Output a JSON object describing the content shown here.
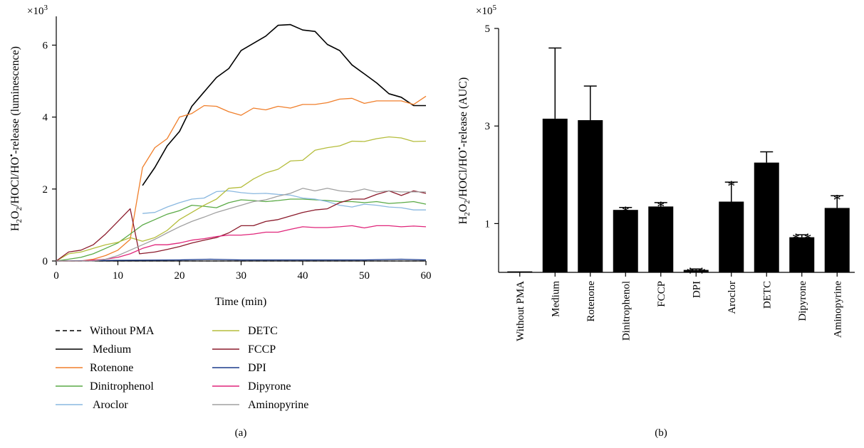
{
  "figure": {
    "panel_a_label": "(a)",
    "panel_b_label": "(b)"
  },
  "chart_data": [
    {
      "type": "line",
      "panel": "(a)",
      "xlabel": "Time (min)",
      "ylabel": "H2O2/HOCl/HO•-release (luminescence)",
      "ylabel_parts": {
        "a": "H",
        "b": "2",
        "c": "O",
        "d": "2",
        "e": "/HOCl/HO",
        "f": "•",
        "g": "-release (luminescence)"
      },
      "yscale_multiplier": {
        "base": "×10",
        "exp": "3"
      },
      "xlim": [
        0,
        60
      ],
      "ylim": [
        0,
        6.8
      ],
      "xticks": [
        0,
        10,
        20,
        30,
        40,
        50,
        60
      ],
      "yticks": [
        0,
        2,
        4,
        6
      ],
      "grid": false,
      "legend_position": "bottom",
      "series": [
        {
          "name": "Without PMA",
          "color": "#000000",
          "dash": "dashed",
          "points": [
            [
              0,
              0
            ],
            [
              10,
              0
            ],
            [
              20,
              0
            ],
            [
              30,
              0
            ],
            [
              40,
              0
            ],
            [
              50,
              0
            ],
            [
              60,
              0
            ]
          ]
        },
        {
          "name": "Medium",
          "color": "#000000",
          "dash": "solid",
          "points": [
            [
              14,
              2.1
            ],
            [
              16,
              2.6
            ],
            [
              18,
              3.2
            ],
            [
              20,
              3.6
            ],
            [
              22,
              4.3
            ],
            [
              24,
              4.7
            ],
            [
              26,
              5.1
            ],
            [
              28,
              5.35
            ],
            [
              30,
              5.85
            ],
            [
              32,
              6.05
            ],
            [
              34,
              6.25
            ],
            [
              36,
              6.55
            ],
            [
              38,
              6.57
            ],
            [
              40,
              6.42
            ],
            [
              42,
              6.38
            ],
            [
              44,
              6.02
            ],
            [
              46,
              5.85
            ],
            [
              48,
              5.45
            ],
            [
              50,
              5.2
            ],
            [
              52,
              4.95
            ],
            [
              54,
              4.65
            ],
            [
              56,
              4.55
            ],
            [
              58,
              4.32
            ],
            [
              60,
              4.32
            ]
          ]
        },
        {
          "name": "Rotenone",
          "color": "#f07f2b",
          "dash": "solid",
          "points": [
            [
              0,
              0
            ],
            [
              4,
              0
            ],
            [
              6,
              0.05
            ],
            [
              8,
              0.15
            ],
            [
              10,
              0.3
            ],
            [
              12,
              0.6
            ],
            [
              14,
              2.6
            ],
            [
              16,
              3.15
            ],
            [
              18,
              3.4
            ],
            [
              20,
              4.0
            ],
            [
              22,
              4.1
            ],
            [
              24,
              4.32
            ],
            [
              26,
              4.3
            ],
            [
              28,
              4.15
            ],
            [
              30,
              4.05
            ],
            [
              32,
              4.25
            ],
            [
              34,
              4.2
            ],
            [
              36,
              4.3
            ],
            [
              38,
              4.25
            ],
            [
              40,
              4.35
            ],
            [
              42,
              4.35
            ],
            [
              44,
              4.4
            ],
            [
              46,
              4.5
            ],
            [
              48,
              4.52
            ],
            [
              50,
              4.38
            ],
            [
              52,
              4.45
            ],
            [
              54,
              4.45
            ],
            [
              56,
              4.45
            ],
            [
              58,
              4.35
            ],
            [
              60,
              4.58
            ]
          ]
        },
        {
          "name": "Dinitrophenol",
          "color": "#5aaa46",
          "dash": "solid",
          "points": [
            [
              0,
              0
            ],
            [
              2,
              0.05
            ],
            [
              4,
              0.1
            ],
            [
              6,
              0.2
            ],
            [
              8,
              0.35
            ],
            [
              10,
              0.5
            ],
            [
              12,
              0.75
            ],
            [
              14,
              1.0
            ],
            [
              16,
              1.15
            ],
            [
              18,
              1.3
            ],
            [
              20,
              1.4
            ],
            [
              22,
              1.55
            ],
            [
              24,
              1.52
            ],
            [
              26,
              1.48
            ],
            [
              28,
              1.62
            ],
            [
              30,
              1.7
            ],
            [
              32,
              1.68
            ],
            [
              34,
              1.65
            ],
            [
              36,
              1.68
            ],
            [
              38,
              1.72
            ],
            [
              40,
              1.72
            ],
            [
              42,
              1.7
            ],
            [
              44,
              1.68
            ],
            [
              46,
              1.65
            ],
            [
              48,
              1.65
            ],
            [
              50,
              1.62
            ],
            [
              52,
              1.65
            ],
            [
              54,
              1.6
            ],
            [
              56,
              1.62
            ],
            [
              58,
              1.65
            ],
            [
              60,
              1.58
            ]
          ]
        },
        {
          "name": "Aroclor",
          "color": "#8ab8e0",
          "dash": "solid",
          "points": [
            [
              14,
              1.32
            ],
            [
              16,
              1.35
            ],
            [
              18,
              1.5
            ],
            [
              20,
              1.62
            ],
            [
              22,
              1.72
            ],
            [
              24,
              1.75
            ],
            [
              26,
              1.93
            ],
            [
              28,
              1.95
            ],
            [
              30,
              1.9
            ],
            [
              32,
              1.87
            ],
            [
              34,
              1.88
            ],
            [
              36,
              1.85
            ],
            [
              38,
              1.83
            ],
            [
              40,
              1.75
            ],
            [
              42,
              1.72
            ],
            [
              44,
              1.65
            ],
            [
              46,
              1.55
            ],
            [
              48,
              1.5
            ],
            [
              50,
              1.58
            ],
            [
              52,
              1.55
            ],
            [
              54,
              1.5
            ],
            [
              56,
              1.48
            ],
            [
              58,
              1.42
            ],
            [
              60,
              1.42
            ]
          ]
        },
        {
          "name": "DETC",
          "color": "#b5bd3c",
          "dash": "solid",
          "points": [
            [
              0,
              0
            ],
            [
              2,
              0.2
            ],
            [
              4,
              0.25
            ],
            [
              6,
              0.35
            ],
            [
              8,
              0.45
            ],
            [
              10,
              0.52
            ],
            [
              12,
              0.65
            ],
            [
              14,
              0.55
            ],
            [
              16,
              0.65
            ],
            [
              18,
              0.85
            ],
            [
              20,
              1.15
            ],
            [
              22,
              1.35
            ],
            [
              24,
              1.55
            ],
            [
              26,
              1.72
            ],
            [
              28,
              2.02
            ],
            [
              30,
              2.05
            ],
            [
              32,
              2.28
            ],
            [
              34,
              2.45
            ],
            [
              36,
              2.55
            ],
            [
              38,
              2.78
            ],
            [
              40,
              2.8
            ],
            [
              42,
              3.08
            ],
            [
              44,
              3.15
            ],
            [
              46,
              3.2
            ],
            [
              48,
              3.33
            ],
            [
              50,
              3.32
            ],
            [
              52,
              3.4
            ],
            [
              54,
              3.45
            ],
            [
              56,
              3.42
            ],
            [
              58,
              3.32
            ],
            [
              60,
              3.33
            ]
          ]
        },
        {
          "name": "FCCP",
          "color": "#8b1a2b",
          "dash": "solid",
          "points": [
            [
              0,
              0
            ],
            [
              2,
              0.25
            ],
            [
              4,
              0.3
            ],
            [
              6,
              0.45
            ],
            [
              8,
              0.75
            ],
            [
              10,
              1.1
            ],
            [
              12,
              1.45
            ],
            [
              13.5,
              0.2
            ],
            [
              16,
              0.25
            ],
            [
              18,
              0.32
            ],
            [
              20,
              0.4
            ],
            [
              22,
              0.5
            ],
            [
              24,
              0.58
            ],
            [
              26,
              0.65
            ],
            [
              28,
              0.78
            ],
            [
              30,
              0.98
            ],
            [
              32,
              0.98
            ],
            [
              34,
              1.1
            ],
            [
              36,
              1.15
            ],
            [
              38,
              1.25
            ],
            [
              40,
              1.35
            ],
            [
              42,
              1.42
            ],
            [
              44,
              1.45
            ],
            [
              46,
              1.62
            ],
            [
              48,
              1.72
            ],
            [
              50,
              1.72
            ],
            [
              52,
              1.85
            ],
            [
              54,
              1.95
            ],
            [
              56,
              1.82
            ],
            [
              58,
              1.95
            ],
            [
              60,
              1.88
            ]
          ]
        },
        {
          "name": "DPI",
          "color": "#1a3a8c",
          "dash": "solid",
          "points": [
            [
              0,
              0
            ],
            [
              10,
              0.02
            ],
            [
              20,
              0.03
            ],
            [
              25,
              0.05
            ],
            [
              30,
              0.03
            ],
            [
              40,
              0.03
            ],
            [
              50,
              0.03
            ],
            [
              56,
              0.05
            ],
            [
              60,
              0.03
            ]
          ]
        },
        {
          "name": "Dipyrone",
          "color": "#e0257a",
          "dash": "solid",
          "points": [
            [
              0,
              0
            ],
            [
              4,
              0
            ],
            [
              8,
              0.05
            ],
            [
              10,
              0.1
            ],
            [
              12,
              0.2
            ],
            [
              14,
              0.35
            ],
            [
              16,
              0.45
            ],
            [
              18,
              0.45
            ],
            [
              20,
              0.5
            ],
            [
              22,
              0.58
            ],
            [
              24,
              0.62
            ],
            [
              26,
              0.68
            ],
            [
              28,
              0.72
            ],
            [
              30,
              0.72
            ],
            [
              32,
              0.75
            ],
            [
              34,
              0.8
            ],
            [
              36,
              0.8
            ],
            [
              38,
              0.88
            ],
            [
              40,
              0.95
            ],
            [
              42,
              0.93
            ],
            [
              44,
              0.93
            ],
            [
              46,
              0.95
            ],
            [
              48,
              0.98
            ],
            [
              50,
              0.92
            ],
            [
              52,
              0.98
            ],
            [
              54,
              0.98
            ],
            [
              56,
              0.95
            ],
            [
              58,
              0.97
            ],
            [
              60,
              0.95
            ]
          ]
        },
        {
          "name": "Aminopyrine",
          "color": "#a0a0a0",
          "dash": "solid",
          "points": [
            [
              0,
              0
            ],
            [
              6,
              0
            ],
            [
              8,
              0.05
            ],
            [
              10,
              0.15
            ],
            [
              12,
              0.3
            ],
            [
              14,
              0.45
            ],
            [
              16,
              0.6
            ],
            [
              18,
              0.78
            ],
            [
              20,
              0.95
            ],
            [
              22,
              1.1
            ],
            [
              24,
              1.22
            ],
            [
              26,
              1.35
            ],
            [
              28,
              1.45
            ],
            [
              30,
              1.55
            ],
            [
              32,
              1.65
            ],
            [
              34,
              1.7
            ],
            [
              36,
              1.8
            ],
            [
              38,
              1.88
            ],
            [
              40,
              2.02
            ],
            [
              42,
              1.95
            ],
            [
              44,
              2.02
            ],
            [
              46,
              1.95
            ],
            [
              48,
              1.92
            ],
            [
              50,
              2.0
            ],
            [
              52,
              1.92
            ],
            [
              54,
              1.95
            ],
            [
              56,
              1.92
            ],
            [
              58,
              1.92
            ],
            [
              60,
              1.92
            ]
          ]
        }
      ]
    },
    {
      "type": "bar",
      "panel": "(b)",
      "ylabel": "H2O2/HOCl/HO•-release (AUC)",
      "ylabel_parts": {
        "a": "H",
        "b": "2",
        "c": "O",
        "d": "2",
        "e": "/HOCl/HO",
        "f": "•",
        "g": "-release (AUC)"
      },
      "yscale_multiplier": {
        "base": "×10",
        "exp": "5"
      },
      "ylim": [
        0,
        5
      ],
      "yticks": [
        1,
        3,
        5
      ],
      "color": "#000000",
      "categories": [
        "Without PMA",
        "Medium",
        "Rotenone",
        "Dinitrophenol",
        "FCCP",
        "DPI",
        "Aroclor",
        "DETC",
        "Dipyrone",
        "Aminopyrine"
      ],
      "values": [
        0.02,
        3.15,
        3.12,
        1.28,
        1.35,
        0.05,
        1.45,
        2.25,
        0.72,
        1.32
      ],
      "errors": [
        0,
        1.45,
        0.7,
        0.05,
        0.08,
        0.02,
        0.4,
        0.22,
        0.05,
        0.25
      ],
      "significance": [
        "",
        "",
        "",
        "*",
        "*",
        "**",
        "*",
        "",
        "**",
        "*"
      ]
    }
  ]
}
